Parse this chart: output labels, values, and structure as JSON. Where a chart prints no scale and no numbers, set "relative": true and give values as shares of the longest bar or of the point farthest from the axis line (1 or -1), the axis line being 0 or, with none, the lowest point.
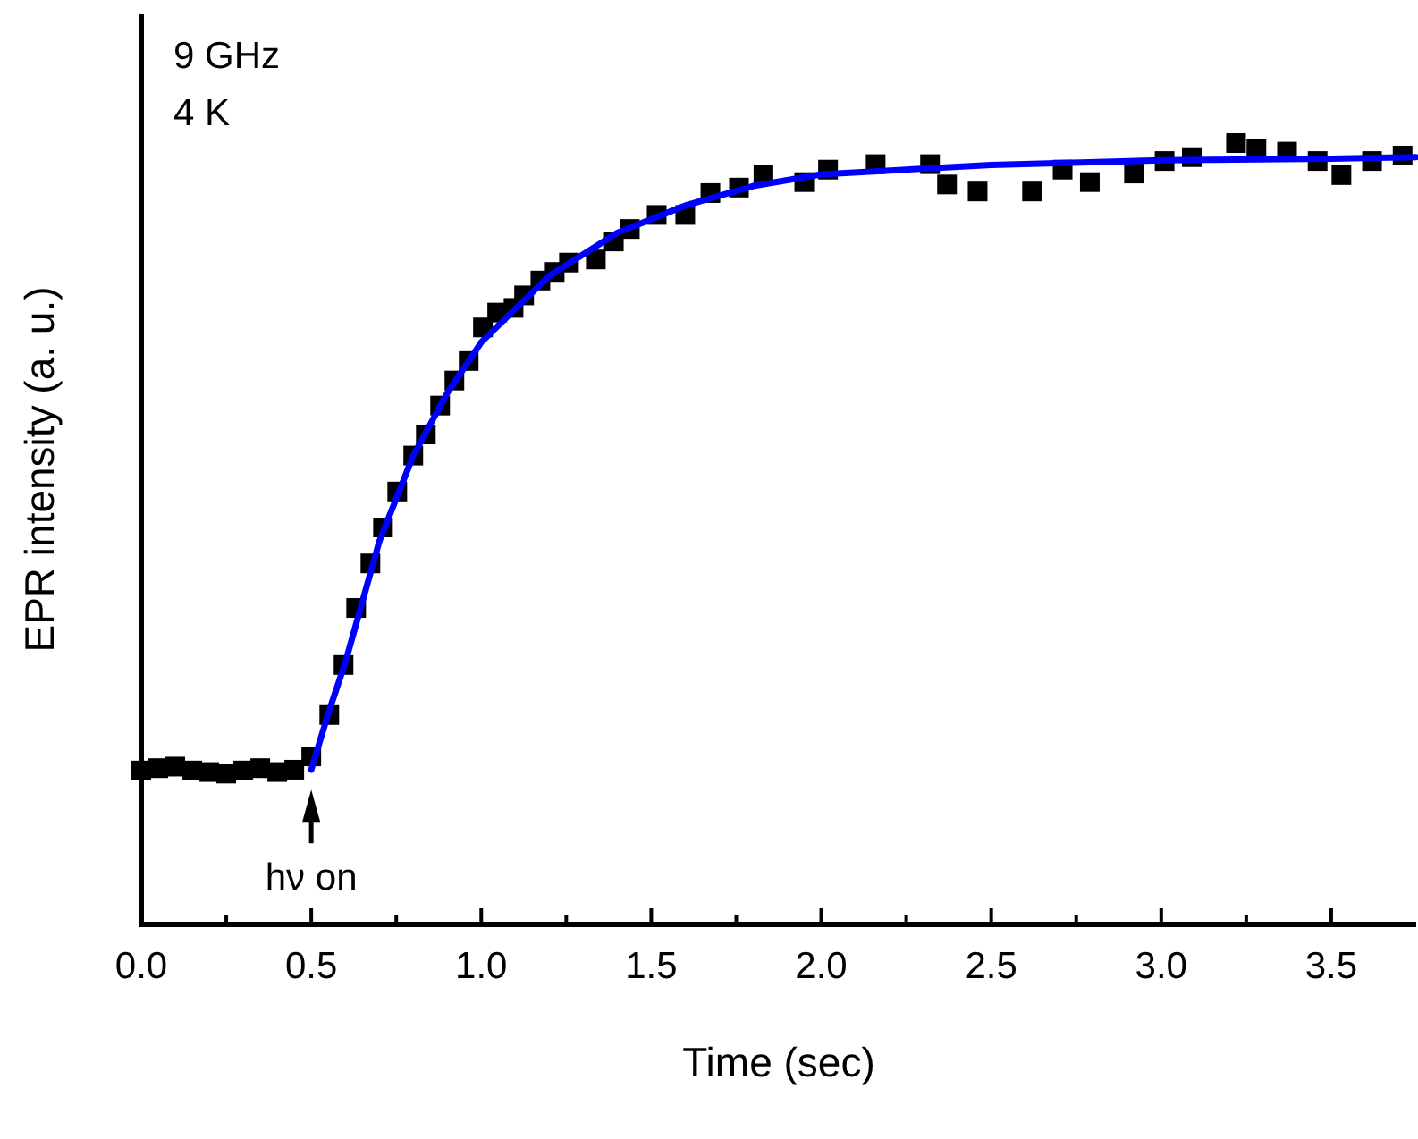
{
  "chart_data": {
    "type": "scatter",
    "xlabel": "Time (sec)",
    "ylabel": "EPR intensity (a. u.)",
    "relative": true,
    "xlim": [
      0,
      3.75
    ],
    "xticks": [
      {
        "value": 0,
        "label": "0.0"
      },
      {
        "value": 0.25,
        "label": null
      },
      {
        "value": 0.5,
        "label": "0.5"
      },
      {
        "value": 0.75,
        "label": null
      },
      {
        "value": 1,
        "label": "1.0"
      },
      {
        "value": 1.25,
        "label": null
      },
      {
        "value": 1.5,
        "label": "1.5"
      },
      {
        "value": 1.75,
        "label": null
      },
      {
        "value": 2,
        "label": "2.0"
      },
      {
        "value": 2.25,
        "label": null
      },
      {
        "value": 2.5,
        "label": "2.5"
      },
      {
        "value": 2.75,
        "label": null
      },
      {
        "value": 3,
        "label": "3.0"
      },
      {
        "value": 3.25,
        "label": null
      },
      {
        "value": 3.5,
        "label": "3.5"
      }
    ],
    "grid": false,
    "annotations": [
      "9 GHz",
      "4 K",
      {
        "text": "hν on",
        "x": 0.5,
        "y": 0.2
      }
    ],
    "series": [
      {
        "marker": "square",
        "color": "#000000",
        "x": [
          0,
          0.05,
          0.1,
          0.15,
          0.2,
          0.25,
          0.3,
          0.35,
          0.4,
          0.45,
          0.5,
          0.553,
          0.595,
          0.632,
          0.674,
          0.711,
          0.753,
          0.8,
          0.837,
          0.879,
          0.921,
          0.963,
          1.005,
          1.047,
          1.095,
          1.126,
          1.174,
          1.216,
          1.258,
          1.337,
          1.39,
          1.437,
          1.516,
          1.6,
          1.674,
          1.758,
          1.83,
          1.95,
          2.02,
          2.16,
          2.32,
          2.37,
          2.46,
          2.62,
          2.71,
          2.79,
          2.92,
          3.01,
          3.09,
          3.22,
          3.28,
          3.37,
          3.46,
          3.53,
          3.62,
          3.71
        ],
        "values": [
          0.197,
          0.2,
          0.202,
          0.197,
          0.195,
          0.193,
          0.197,
          0.2,
          0.195,
          0.198,
          0.215,
          0.268,
          0.332,
          0.405,
          0.462,
          0.508,
          0.554,
          0.6,
          0.627,
          0.664,
          0.696,
          0.721,
          0.764,
          0.783,
          0.789,
          0.805,
          0.824,
          0.835,
          0.847,
          0.851,
          0.874,
          0.89,
          0.908,
          0.908,
          0.936,
          0.943,
          0.959,
          0.95,
          0.966,
          0.973,
          0.973,
          0.947,
          0.938,
          0.938,
          0.966,
          0.95,
          0.961,
          0.977,
          0.982,
          1,
          0.993,
          0.989,
          0.977,
          0.959,
          0.977,
          0.984
        ]
      },
      {
        "type": "line",
        "marker": "none",
        "line_style": "solid",
        "color": "#0000ff",
        "x": [
          0.5,
          0.55,
          0.6,
          0.7,
          0.8,
          0.9,
          1.0,
          1.2,
          1.4,
          1.6,
          1.8,
          2.0,
          2.5,
          3.0,
          3.5,
          3.75
        ],
        "values": [
          0.198,
          0.27,
          0.335,
          0.49,
          0.6,
          0.68,
          0.745,
          0.83,
          0.885,
          0.92,
          0.945,
          0.96,
          0.972,
          0.978,
          0.98,
          0.982
        ]
      }
    ]
  }
}
